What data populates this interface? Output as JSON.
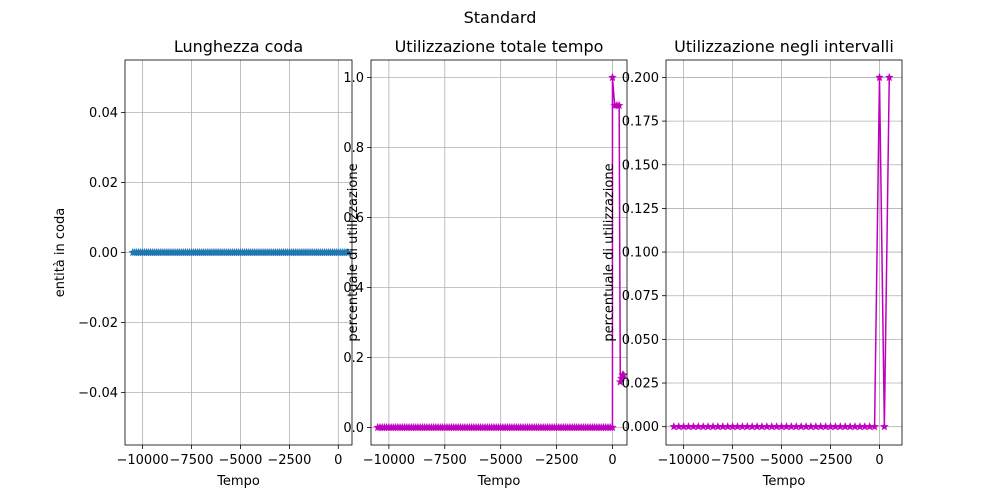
{
  "figure": {
    "suptitle": "Standard"
  },
  "chart_data": [
    {
      "type": "line",
      "title": "Lunghezza coda",
      "xlabel": "Tempo",
      "ylabel": "entità in coda",
      "xlim": [
        -10900,
        700
      ],
      "ylim": [
        -0.055,
        0.055
      ],
      "xticks": [
        -10000,
        -7500,
        -5000,
        -2500,
        0
      ],
      "xtick_labels": [
        "−10000",
        "−7500",
        "−5000",
        "−2500",
        "0"
      ],
      "yticks": [
        -0.04,
        -0.02,
        0.0,
        0.02,
        0.04
      ],
      "ytick_labels": [
        "−0.04",
        "−0.02",
        "0.00",
        "0.02",
        "0.04"
      ],
      "grid": true,
      "series": [
        {
          "color": "#1f77b4",
          "marker": "star",
          "x_range": [
            -10500,
            500
          ],
          "x_count": 111,
          "y_constant": 0.0
        }
      ]
    },
    {
      "type": "line",
      "title": "Utilizzazione totale tempo",
      "xlabel": "Tempo",
      "ylabel": "percentuale di utilizzazione",
      "xlim": [
        -10800,
        650
      ],
      "ylim": [
        -0.05,
        1.05
      ],
      "xticks": [
        -10000,
        -7500,
        -5000,
        -2500,
        0
      ],
      "xtick_labels": [
        "−10000",
        "−7500",
        "−5000",
        "−2500",
        "0"
      ],
      "yticks": [
        0.0,
        0.2,
        0.4,
        0.6,
        0.8,
        1.0
      ],
      "ytick_labels": [
        "0.0",
        "0.2",
        "0.4",
        "0.6",
        "0.8",
        "1.0"
      ],
      "grid": true,
      "series": [
        {
          "color": "#bf00bf",
          "marker": "star",
          "x_range": [
            -10500,
            -100
          ],
          "x_count": 105,
          "y_constant": 0.0,
          "tail_x": [
            0,
            0,
            100,
            200,
            300,
            350,
            400,
            450,
            500
          ],
          "tail_y": [
            0.0,
            1.0,
            0.92,
            0.92,
            0.92,
            0.13,
            0.14,
            0.15,
            0.15
          ]
        }
      ]
    },
    {
      "type": "line",
      "title": "Utilizzazione negli intervalli",
      "xlabel": "Tempo",
      "ylabel": "percentuale di utilizzazione",
      "xlim": [
        -10900,
        1150
      ],
      "ylim": [
        -0.0105,
        0.21
      ],
      "xticks": [
        -10000,
        -7500,
        -5000,
        -2500,
        0
      ],
      "xtick_labels": [
        "−10000",
        "−7500",
        "−5000",
        "−2500",
        "0"
      ],
      "yticks": [
        0.0,
        0.025,
        0.05,
        0.075,
        0.1,
        0.125,
        0.15,
        0.175,
        0.2
      ],
      "ytick_labels": [
        "0.000",
        "0.025",
        "0.050",
        "0.075",
        "0.100",
        "0.125",
        "0.150",
        "0.175",
        "0.200"
      ],
      "grid": true,
      "series": [
        {
          "color": "#bf00bf",
          "marker": "star",
          "x_range": [
            -10500,
            -500
          ],
          "x_count": 41,
          "y_constant": 0.0,
          "tail_x": [
            -250,
            0,
            250,
            500
          ],
          "tail_y": [
            0.0,
            0.2,
            0.0,
            0.2
          ]
        }
      ]
    }
  ]
}
